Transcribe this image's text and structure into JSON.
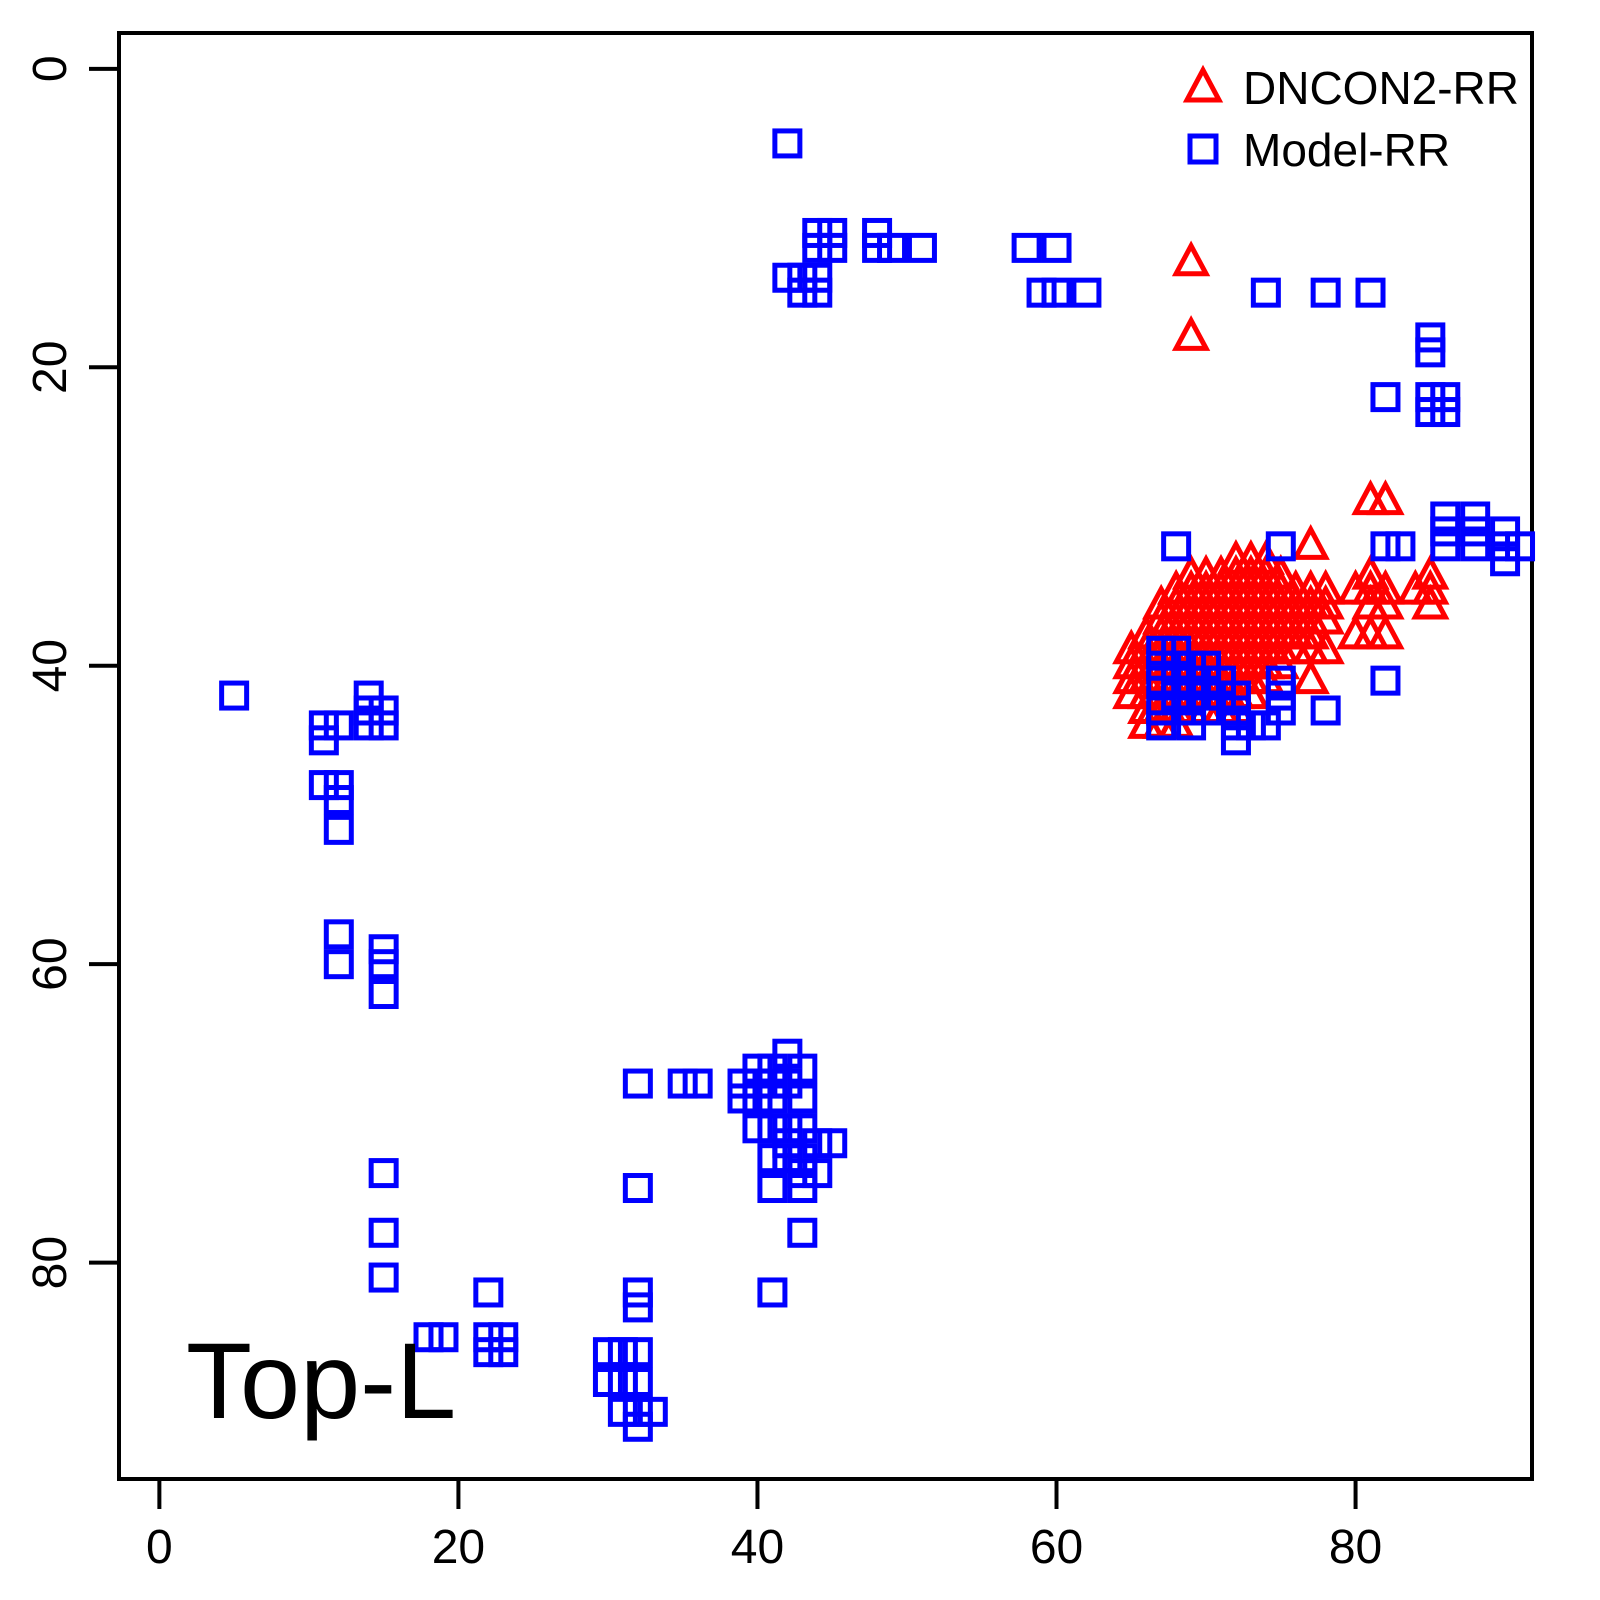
{
  "figure": {
    "background": "#FFFFFF"
  },
  "chart_data": {
    "type": "scatter",
    "title": "",
    "xlabel": "",
    "ylabel": "",
    "annotation": "Top-L",
    "axes": {
      "x_ticks": [
        0,
        20,
        40,
        60,
        80
      ],
      "y_ticks": [
        0,
        20,
        40,
        60,
        80
      ],
      "xlim": [
        -2.7,
        91.8
      ],
      "ylim": [
        -2.4,
        94.5
      ],
      "y_inverted": true,
      "grid": false,
      "box": true
    },
    "legend": {
      "position": "top-right",
      "items": [
        {
          "label": "DNCON2-RR",
          "marker": "triangle",
          "color": "#FF0000"
        },
        {
          "label": "Model-RR",
          "marker": "square",
          "color": "#0000FF"
        }
      ]
    },
    "series": [
      {
        "name": "DNCON2-RR",
        "marker": "triangle",
        "color": "#FF0000",
        "points": [
          [
            69,
            13
          ],
          [
            69,
            18
          ],
          [
            81,
            29
          ],
          [
            82,
            29
          ],
          [
            77,
            32
          ],
          [
            72,
            33
          ],
          [
            73,
            33
          ],
          [
            74,
            33
          ],
          [
            69,
            34
          ],
          [
            70,
            34
          ],
          [
            71,
            34
          ],
          [
            72,
            34
          ],
          [
            73,
            34
          ],
          [
            74,
            34
          ],
          [
            75,
            34
          ],
          [
            81,
            34
          ],
          [
            85,
            34
          ],
          [
            68,
            35
          ],
          [
            69,
            35
          ],
          [
            70,
            35
          ],
          [
            71,
            35
          ],
          [
            72,
            35
          ],
          [
            73,
            35
          ],
          [
            74,
            35
          ],
          [
            75,
            35
          ],
          [
            76,
            35
          ],
          [
            77,
            35
          ],
          [
            78,
            35
          ],
          [
            80,
            35
          ],
          [
            81,
            35
          ],
          [
            82,
            35
          ],
          [
            84,
            35
          ],
          [
            85,
            35
          ],
          [
            67,
            36
          ],
          [
            68,
            36
          ],
          [
            69,
            36
          ],
          [
            70,
            36
          ],
          [
            71,
            36
          ],
          [
            72,
            36
          ],
          [
            73,
            36
          ],
          [
            74,
            36
          ],
          [
            75,
            36
          ],
          [
            76,
            36
          ],
          [
            77,
            36
          ],
          [
            78,
            36
          ],
          [
            81,
            36
          ],
          [
            82,
            36
          ],
          [
            85,
            36
          ],
          [
            67,
            37
          ],
          [
            68,
            37
          ],
          [
            69,
            37
          ],
          [
            70,
            37
          ],
          [
            71,
            37
          ],
          [
            72,
            37
          ],
          [
            73,
            37
          ],
          [
            74,
            37
          ],
          [
            75,
            37
          ],
          [
            76,
            37
          ],
          [
            77,
            37
          ],
          [
            78,
            37
          ],
          [
            66,
            38
          ],
          [
            67,
            38
          ],
          [
            68,
            38
          ],
          [
            69,
            38
          ],
          [
            70,
            38
          ],
          [
            71,
            38
          ],
          [
            72,
            38
          ],
          [
            73,
            38
          ],
          [
            74,
            38
          ],
          [
            75,
            38
          ],
          [
            76,
            38
          ],
          [
            77,
            38
          ],
          [
            80,
            38
          ],
          [
            81,
            38
          ],
          [
            82,
            38
          ],
          [
            65,
            39
          ],
          [
            66,
            39
          ],
          [
            67,
            39
          ],
          [
            68,
            39
          ],
          [
            69,
            39
          ],
          [
            70,
            39
          ],
          [
            71,
            39
          ],
          [
            72,
            39
          ],
          [
            73,
            39
          ],
          [
            74,
            39
          ],
          [
            75,
            39
          ],
          [
            76,
            39
          ],
          [
            77,
            39
          ],
          [
            78,
            39
          ],
          [
            65,
            40
          ],
          [
            66,
            40
          ],
          [
            67,
            40
          ],
          [
            68,
            40
          ],
          [
            69,
            40
          ],
          [
            70,
            40
          ],
          [
            71,
            40
          ],
          [
            72,
            40
          ],
          [
            73,
            40
          ],
          [
            74,
            40
          ],
          [
            75,
            40
          ],
          [
            65,
            41
          ],
          [
            66,
            41
          ],
          [
            67,
            41
          ],
          [
            68,
            41
          ],
          [
            69,
            41
          ],
          [
            70,
            41
          ],
          [
            71,
            41
          ],
          [
            72,
            41
          ],
          [
            73,
            41
          ],
          [
            74,
            41
          ],
          [
            77,
            41
          ],
          [
            65,
            42
          ],
          [
            66,
            42
          ],
          [
            67,
            42
          ],
          [
            68,
            42
          ],
          [
            69,
            42
          ],
          [
            70,
            42
          ],
          [
            71,
            42
          ],
          [
            72,
            42
          ],
          [
            73,
            42
          ],
          [
            66,
            43
          ],
          [
            67,
            43
          ],
          [
            68,
            43
          ],
          [
            69,
            43
          ],
          [
            70,
            43
          ],
          [
            71,
            43
          ],
          [
            72,
            43
          ],
          [
            66,
            44
          ],
          [
            67,
            44
          ],
          [
            68,
            44
          ]
        ]
      },
      {
        "name": "Model-RR",
        "marker": "square",
        "color": "#0000FF",
        "points": [
          [
            42,
            5
          ],
          [
            44,
            11
          ],
          [
            45,
            11
          ],
          [
            48,
            11
          ],
          [
            44,
            12
          ],
          [
            45,
            12
          ],
          [
            48,
            12
          ],
          [
            49,
            12
          ],
          [
            51,
            12
          ],
          [
            58,
            12
          ],
          [
            60,
            12
          ],
          [
            42,
            14
          ],
          [
            43,
            14
          ],
          [
            44,
            14
          ],
          [
            43,
            15
          ],
          [
            44,
            15
          ],
          [
            59,
            15
          ],
          [
            60,
            15
          ],
          [
            62,
            15
          ],
          [
            74,
            15
          ],
          [
            78,
            15
          ],
          [
            81,
            15
          ],
          [
            85,
            18
          ],
          [
            85,
            19
          ],
          [
            82,
            22
          ],
          [
            85,
            22
          ],
          [
            86,
            22
          ],
          [
            85,
            23
          ],
          [
            86,
            23
          ],
          [
            86,
            30
          ],
          [
            88,
            30
          ],
          [
            86,
            31
          ],
          [
            88,
            31
          ],
          [
            90,
            31
          ],
          [
            68,
            32
          ],
          [
            75,
            32
          ],
          [
            82,
            32
          ],
          [
            83,
            32
          ],
          [
            86,
            32
          ],
          [
            88,
            32
          ],
          [
            90,
            32
          ],
          [
            91,
            32
          ],
          [
            90,
            33
          ],
          [
            5,
            42
          ],
          [
            14,
            42
          ],
          [
            14,
            43
          ],
          [
            15,
            43
          ],
          [
            11,
            44
          ],
          [
            12,
            44
          ],
          [
            14,
            44
          ],
          [
            15,
            44
          ],
          [
            11,
            45
          ],
          [
            11,
            48
          ],
          [
            12,
            48
          ],
          [
            12,
            49
          ],
          [
            12,
            51
          ],
          [
            12,
            58
          ],
          [
            15,
            59
          ],
          [
            12,
            60
          ],
          [
            15,
            60
          ],
          [
            15,
            62
          ],
          [
            15,
            74
          ],
          [
            15,
            78
          ],
          [
            15,
            81
          ],
          [
            67,
            39
          ],
          [
            68,
            39
          ],
          [
            67,
            40
          ],
          [
            68,
            40
          ],
          [
            69,
            40
          ],
          [
            70,
            40
          ],
          [
            67,
            41
          ],
          [
            68,
            41
          ],
          [
            69,
            41
          ],
          [
            70,
            41
          ],
          [
            71,
            41
          ],
          [
            75,
            41
          ],
          [
            82,
            41
          ],
          [
            68,
            42
          ],
          [
            69,
            42
          ],
          [
            70,
            42
          ],
          [
            71,
            42
          ],
          [
            72,
            42
          ],
          [
            75,
            42
          ],
          [
            67,
            43
          ],
          [
            69,
            43
          ],
          [
            70,
            43
          ],
          [
            72,
            43
          ],
          [
            75,
            43
          ],
          [
            78,
            43
          ],
          [
            67,
            44
          ],
          [
            69,
            44
          ],
          [
            72,
            44
          ],
          [
            73,
            44
          ],
          [
            74,
            44
          ],
          [
            72,
            45
          ],
          [
            42,
            66
          ],
          [
            40,
            67
          ],
          [
            41,
            67
          ],
          [
            43,
            67
          ],
          [
            32,
            68
          ],
          [
            35,
            68
          ],
          [
            36,
            68
          ],
          [
            39,
            68
          ],
          [
            40,
            68
          ],
          [
            41,
            68
          ],
          [
            42,
            68
          ],
          [
            39,
            69
          ],
          [
            40,
            69
          ],
          [
            41,
            69
          ],
          [
            43,
            69
          ],
          [
            40,
            71
          ],
          [
            41,
            71
          ],
          [
            42,
            71
          ],
          [
            43,
            71
          ],
          [
            42,
            72
          ],
          [
            44,
            72
          ],
          [
            45,
            72
          ],
          [
            41,
            73
          ],
          [
            42,
            73
          ],
          [
            43,
            73
          ],
          [
            43,
            74
          ],
          [
            44,
            74
          ],
          [
            32,
            75
          ],
          [
            41,
            75
          ],
          [
            43,
            75
          ],
          [
            43,
            78
          ],
          [
            22,
            82
          ],
          [
            32,
            82
          ],
          [
            41,
            82
          ],
          [
            32,
            83
          ],
          [
            18,
            85
          ],
          [
            19,
            85
          ],
          [
            22,
            85
          ],
          [
            23,
            85
          ],
          [
            22,
            86
          ],
          [
            23,
            86
          ],
          [
            30,
            86
          ],
          [
            31,
            86
          ],
          [
            32,
            86
          ],
          [
            30,
            88
          ],
          [
            31,
            88
          ],
          [
            32,
            88
          ],
          [
            31,
            90
          ],
          [
            32,
            90
          ],
          [
            33,
            90
          ],
          [
            32,
            91
          ]
        ]
      }
    ]
  }
}
